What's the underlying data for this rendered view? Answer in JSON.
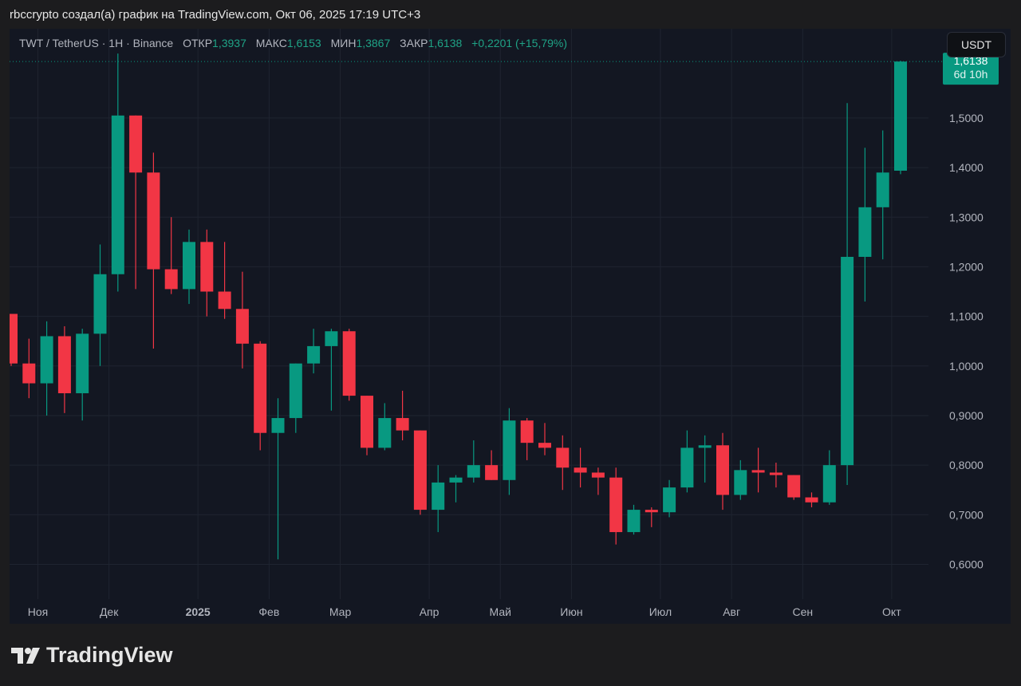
{
  "caption": "rbccrypto создал(а) график на TradingView.com, Окт 06, 2025 17:19 UTC+3",
  "header": {
    "symbol": "TWT / TetherUS · 1H · Binance",
    "open_label": "ОТКР",
    "open_value": "1,3937",
    "high_label": "МАКС",
    "high_value": "1,6153",
    "low_label": "МИН",
    "low_value": "1,3867",
    "close_label": "ЗАКР",
    "close_value": "1,6138",
    "change": "+0,2201 (+15,79%)"
  },
  "currency_button": "USDT",
  "price_badge": {
    "price": "1,6138",
    "countdown": "6d 10h"
  },
  "footer_logo": "TradingView",
  "colors": {
    "up": "#089981",
    "down": "#f23645",
    "background": "#131722",
    "grid": "#1f2430",
    "axis_text": "#b2b5be"
  },
  "chart_data": {
    "type": "candlestick",
    "y_ticks": [
      0.6,
      0.7,
      0.8,
      0.9,
      1.0,
      1.1,
      1.2,
      1.3,
      1.4,
      1.5
    ],
    "y_tick_labels": [
      "0,6000",
      "0,7000",
      "0,8000",
      "0,9000",
      "1,0000",
      "1,1000",
      "1,2000",
      "1,3000",
      "1,4000",
      "1,5000"
    ],
    "ylim": [
      0.53,
      1.68
    ],
    "x_labels": [
      {
        "label": "Ноя",
        "index": 1.5,
        "bold": false
      },
      {
        "label": "Дек",
        "index": 5.5,
        "bold": false
      },
      {
        "label": "2025",
        "index": 10.5,
        "bold": true
      },
      {
        "label": "Фев",
        "index": 14.5,
        "bold": false
      },
      {
        "label": "Мар",
        "index": 18.5,
        "bold": false
      },
      {
        "label": "Апр",
        "index": 23.5,
        "bold": false
      },
      {
        "label": "Май",
        "index": 27.5,
        "bold": false
      },
      {
        "label": "Июн",
        "index": 31.5,
        "bold": false
      },
      {
        "label": "Июл",
        "index": 36.5,
        "bold": false
      },
      {
        "label": "Авг",
        "index": 40.5,
        "bold": false
      },
      {
        "label": "Сен",
        "index": 44.5,
        "bold": false
      },
      {
        "label": "Окт",
        "index": 49.5,
        "bold": false
      }
    ],
    "last_price": 1.6138,
    "candles": [
      {
        "o": 1.105,
        "h": 1.105,
        "l": 1.0,
        "c": 1.005
      },
      {
        "o": 1.005,
        "h": 1.055,
        "l": 0.935,
        "c": 0.965
      },
      {
        "o": 0.965,
        "h": 1.09,
        "l": 0.9,
        "c": 1.06
      },
      {
        "o": 1.06,
        "h": 1.08,
        "l": 0.905,
        "c": 0.945
      },
      {
        "o": 0.945,
        "h": 1.075,
        "l": 0.89,
        "c": 1.065
      },
      {
        "o": 1.065,
        "h": 1.245,
        "l": 1.0,
        "c": 1.185
      },
      {
        "o": 1.185,
        "h": 1.63,
        "l": 1.15,
        "c": 1.505
      },
      {
        "o": 1.505,
        "h": 1.505,
        "l": 1.155,
        "c": 1.39
      },
      {
        "o": 1.39,
        "h": 1.43,
        "l": 1.035,
        "c": 1.195
      },
      {
        "o": 1.195,
        "h": 1.3,
        "l": 1.145,
        "c": 1.155
      },
      {
        "o": 1.155,
        "h": 1.275,
        "l": 1.125,
        "c": 1.25
      },
      {
        "o": 1.25,
        "h": 1.275,
        "l": 1.1,
        "c": 1.15
      },
      {
        "o": 1.15,
        "h": 1.25,
        "l": 1.095,
        "c": 1.115
      },
      {
        "o": 1.115,
        "h": 1.19,
        "l": 0.995,
        "c": 1.045
      },
      {
        "o": 1.045,
        "h": 1.05,
        "l": 0.83,
        "c": 0.865
      },
      {
        "o": 0.865,
        "h": 0.935,
        "l": 0.61,
        "c": 0.895
      },
      {
        "o": 0.895,
        "h": 1.005,
        "l": 0.865,
        "c": 1.005
      },
      {
        "o": 1.005,
        "h": 1.075,
        "l": 0.985,
        "c": 1.04
      },
      {
        "o": 1.04,
        "h": 1.075,
        "l": 0.91,
        "c": 1.07
      },
      {
        "o": 1.07,
        "h": 1.075,
        "l": 0.93,
        "c": 0.94
      },
      {
        "o": 0.94,
        "h": 0.94,
        "l": 0.82,
        "c": 0.835
      },
      {
        "o": 0.835,
        "h": 0.925,
        "l": 0.83,
        "c": 0.895
      },
      {
        "o": 0.895,
        "h": 0.95,
        "l": 0.85,
        "c": 0.87
      },
      {
        "o": 0.87,
        "h": 0.87,
        "l": 0.7,
        "c": 0.71
      },
      {
        "o": 0.71,
        "h": 0.8,
        "l": 0.665,
        "c": 0.765
      },
      {
        "o": 0.765,
        "h": 0.78,
        "l": 0.725,
        "c": 0.775
      },
      {
        "o": 0.775,
        "h": 0.85,
        "l": 0.765,
        "c": 0.8
      },
      {
        "o": 0.8,
        "h": 0.83,
        "l": 0.77,
        "c": 0.77
      },
      {
        "o": 0.77,
        "h": 0.915,
        "l": 0.74,
        "c": 0.89
      },
      {
        "o": 0.89,
        "h": 0.895,
        "l": 0.81,
        "c": 0.845
      },
      {
        "o": 0.845,
        "h": 0.885,
        "l": 0.82,
        "c": 0.835
      },
      {
        "o": 0.835,
        "h": 0.86,
        "l": 0.75,
        "c": 0.795
      },
      {
        "o": 0.795,
        "h": 0.835,
        "l": 0.755,
        "c": 0.785
      },
      {
        "o": 0.785,
        "h": 0.795,
        "l": 0.74,
        "c": 0.775
      },
      {
        "o": 0.775,
        "h": 0.795,
        "l": 0.64,
        "c": 0.665
      },
      {
        "o": 0.665,
        "h": 0.72,
        "l": 0.66,
        "c": 0.71
      },
      {
        "o": 0.71,
        "h": 0.715,
        "l": 0.675,
        "c": 0.705
      },
      {
        "o": 0.705,
        "h": 0.77,
        "l": 0.695,
        "c": 0.755
      },
      {
        "o": 0.755,
        "h": 0.87,
        "l": 0.745,
        "c": 0.835
      },
      {
        "o": 0.835,
        "h": 0.86,
        "l": 0.765,
        "c": 0.84
      },
      {
        "o": 0.84,
        "h": 0.865,
        "l": 0.71,
        "c": 0.74
      },
      {
        "o": 0.74,
        "h": 0.81,
        "l": 0.73,
        "c": 0.79
      },
      {
        "o": 0.79,
        "h": 0.835,
        "l": 0.745,
        "c": 0.785
      },
      {
        "o": 0.785,
        "h": 0.805,
        "l": 0.755,
        "c": 0.78
      },
      {
        "o": 0.78,
        "h": 0.78,
        "l": 0.73,
        "c": 0.735
      },
      {
        "o": 0.735,
        "h": 0.745,
        "l": 0.715,
        "c": 0.725
      },
      {
        "o": 0.725,
        "h": 0.83,
        "l": 0.72,
        "c": 0.8
      },
      {
        "o": 0.8,
        "h": 1.53,
        "l": 0.76,
        "c": 1.22
      },
      {
        "o": 1.22,
        "h": 1.44,
        "l": 1.13,
        "c": 1.32
      },
      {
        "o": 1.32,
        "h": 1.475,
        "l": 1.215,
        "c": 1.39
      },
      {
        "o": 1.3937,
        "h": 1.6153,
        "l": 1.3867,
        "c": 1.6138
      }
    ]
  }
}
